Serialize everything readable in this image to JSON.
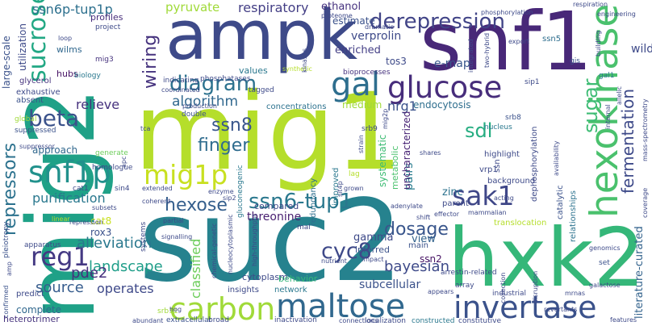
{
  "words": [
    {
      "text": "mig1",
      "color": "#b5de2b"
    },
    {
      "text": "mig2",
      "color": "#1fa187"
    },
    {
      "text": "suc2",
      "color": "#26828e"
    },
    {
      "text": "snf1",
      "color": "#482878"
    },
    {
      "text": "ampk",
      "color": "#3e4a89"
    },
    {
      "text": "hxk2",
      "color": "#35b779"
    },
    {
      "text": "hexokinase",
      "color": "#4ac16d"
    },
    {
      "text": "invertase",
      "color": "#3b528b"
    },
    {
      "text": "maltose",
      "color": "#31688e"
    },
    {
      "text": "glucose",
      "color": "#472d7b"
    },
    {
      "text": "carbon",
      "color": "#a0da39"
    },
    {
      "text": "mig1p",
      "color": "#c8e020"
    },
    {
      "text": "sak1",
      "color": "#3f4788"
    },
    {
      "text": "snf1p",
      "color": "#21918c"
    },
    {
      "text": "reg1",
      "color": "#443983"
    },
    {
      "text": "gal",
      "color": "#2e6e8e"
    },
    {
      "text": "diagram",
      "color": "#2c728e"
    },
    {
      "text": "hexose",
      "color": "#355f8d"
    },
    {
      "text": "ssn6-tup1",
      "color": "#2a788e"
    },
    {
      "text": "sucrose",
      "color": "#22a884"
    },
    {
      "text": "beta",
      "color": "#3b528b"
    },
    {
      "text": "cyc8",
      "color": "#3e4989"
    },
    {
      "text": "derepression",
      "color": "#414487"
    },
    {
      "text": "fermentation",
      "color": "#3e4a89"
    },
    {
      "text": "ssn8",
      "color": "#39568c"
    },
    {
      "text": "sugar",
      "color": "#3dbc74"
    },
    {
      "text": "dosage",
      "color": "#39568c"
    },
    {
      "text": "wiring",
      "color": "#46337e"
    },
    {
      "text": "finger",
      "color": "#2f6c8e"
    },
    {
      "text": "sdl",
      "color": "#26ad81"
    },
    {
      "text": "repressors",
      "color": "#2c728e"
    },
    {
      "text": "alleviation",
      "color": "#2a788e"
    },
    {
      "text": "landscape",
      "color": "#1f9e89"
    },
    {
      "text": "respiratory",
      "color": "#433e85"
    },
    {
      "text": "pyruvate",
      "color": "#a0da39"
    },
    {
      "text": "pde2",
      "color": "#46307e"
    },
    {
      "text": "ssn6p-tup1p",
      "color": "#2d708e"
    },
    {
      "text": "operates",
      "color": "#3e4989"
    },
    {
      "text": "source",
      "color": "#365c8d"
    },
    {
      "text": "bayesian",
      "color": "#3e4a89"
    },
    {
      "text": "subcellular",
      "color": "#3b528b"
    },
    {
      "text": "threonine",
      "color": "#481f70"
    },
    {
      "text": "zinc",
      "color": "#2c728e"
    },
    {
      "text": "pairs",
      "color": "#287c8e"
    },
    {
      "text": "algorithm",
      "color": "#31688e"
    },
    {
      "text": "relieve",
      "color": "#46327e"
    },
    {
      "text": "purification",
      "color": "#2a788e"
    },
    {
      "text": "nrg1",
      "color": "#3b528b"
    },
    {
      "text": "classified",
      "color": "#6ccd5a"
    },
    {
      "text": "view",
      "color": "#33638d"
    },
    {
      "text": "gamma",
      "color": "#3e4a89"
    },
    {
      "text": "ssn2",
      "color": "#471365"
    },
    {
      "text": "complete",
      "color": "#31688e"
    },
    {
      "text": "literature-curated",
      "color": "#33638d"
    },
    {
      "text": "uncharacterized",
      "color": "#482475"
    },
    {
      "text": "verprolin",
      "color": "#3e4a89"
    },
    {
      "text": "enriched",
      "color": "#433e85"
    },
    {
      "text": "tos3",
      "color": "#3e4a89"
    },
    {
      "text": "e-map",
      "color": "#39568c"
    },
    {
      "text": "ethanol",
      "color": "#46327e"
    },
    {
      "text": "estimate",
      "color": "#3b528b"
    },
    {
      "text": "endocytosis",
      "color": "#2e6e8e"
    },
    {
      "text": "large-scale",
      "color": "#3b528b"
    },
    {
      "text": "utilization",
      "color": "#3e4a89"
    },
    {
      "text": "hubs",
      "color": "#471365"
    },
    {
      "text": "wilms",
      "color": "#31688e"
    },
    {
      "text": "approach",
      "color": "#31688e"
    },
    {
      "text": "systematic",
      "color": "#3dbc74"
    },
    {
      "text": "metabolic",
      "color": "#4ac16d"
    },
    {
      "text": "cat8",
      "color": "#c8e020"
    },
    {
      "text": "rox3",
      "color": "#3b528b"
    },
    {
      "text": "cytoplasm",
      "color": "#3e4a89"
    },
    {
      "text": "profiles",
      "color": "#472d7b"
    },
    {
      "text": "medium",
      "color": "#a0da39"
    },
    {
      "text": "values",
      "color": "#2a788e"
    },
    {
      "text": "compared",
      "color": "#3e4a89"
    },
    {
      "text": "concentrations",
      "color": "#2c728e"
    },
    {
      "text": "glycerol",
      "color": "#46337e"
    },
    {
      "text": "exhaustive",
      "color": "#3e4a89"
    },
    {
      "text": "absent",
      "color": "#3b528b"
    },
    {
      "text": "redundancy",
      "color": "#2e6e8e"
    },
    {
      "text": "improved",
      "color": "#2a788e"
    },
    {
      "text": "srb11",
      "color": "#a0da39"
    },
    {
      "text": "insights",
      "color": "#3e4a89"
    },
    {
      "text": "network",
      "color": "#2a788e"
    },
    {
      "text": "behavior",
      "color": "#35b779"
    },
    {
      "text": "inferred",
      "color": "#3b528b"
    },
    {
      "text": "main",
      "color": "#3b528b"
    },
    {
      "text": "translocation",
      "color": "#b5de2b"
    },
    {
      "text": "catalytic",
      "color": "#3b528b"
    },
    {
      "text": "dephosphorylation",
      "color": "#3e4a89"
    },
    {
      "text": "relationships",
      "color": "#2c728e"
    },
    {
      "text": "background",
      "color": "#3e4a89"
    },
    {
      "text": "parent",
      "color": "#3e4a89"
    },
    {
      "text": "highlight",
      "color": "#3e4a89"
    },
    {
      "text": "vrp1",
      "color": "#3e4a89"
    },
    {
      "text": "ssn5",
      "color": "#2e6e8e"
    },
    {
      "text": "gal1",
      "color": "#2a788e"
    },
    {
      "text": "gis",
      "color": "#3b528b"
    },
    {
      "text": "sip1",
      "color": "#3e4a89"
    },
    {
      "text": "tagged",
      "color": "#3e4a89"
    },
    {
      "text": "bioprocesses",
      "color": "#46327e"
    },
    {
      "text": "srb8",
      "color": "#3b528b"
    },
    {
      "text": "srb9",
      "color": "#3e4a89"
    },
    {
      "text": "nucleus",
      "color": "#2a788e"
    },
    {
      "text": "mig3",
      "color": "#46337e"
    },
    {
      "text": "double",
      "color": "#3b528b"
    },
    {
      "text": "generate",
      "color": "#6ccd5a"
    },
    {
      "text": "homologue",
      "color": "#3e4a89"
    },
    {
      "text": "phosphatases",
      "color": "#3e4a89"
    },
    {
      "text": "indicating",
      "color": "#3e4a89"
    },
    {
      "text": "global",
      "color": "#a0da39"
    },
    {
      "text": "suppressed",
      "color": "#3b528b"
    },
    {
      "text": "project",
      "color": "#3e4a89"
    },
    {
      "text": "biology",
      "color": "#2a788e"
    },
    {
      "text": "pleiotropy",
      "color": "#3b528b"
    },
    {
      "text": "apparatus",
      "color": "#3e4a89"
    },
    {
      "text": "confirmed",
      "color": "#3b528b"
    },
    {
      "text": "predict",
      "color": "#3e4a89"
    },
    {
      "text": "heterotrimer",
      "color": "#46337e"
    },
    {
      "text": "subsets",
      "color": "#3e4a89"
    },
    {
      "text": "repression",
      "color": "#3e4a89"
    },
    {
      "text": "linear",
      "color": "#b5de2b"
    },
    {
      "text": "signalling",
      "color": "#3e4a89"
    },
    {
      "text": "hog",
      "color": "#3e4a89"
    },
    {
      "text": "extended",
      "color": "#3e4a89"
    },
    {
      "text": "extracellular",
      "color": "#3b528b"
    },
    {
      "text": "broad",
      "color": "#3e4a89"
    },
    {
      "text": "inactivation",
      "color": "#3e4a89"
    },
    {
      "text": "localization",
      "color": "#3e4a89"
    },
    {
      "text": "constructed",
      "color": "#2a788e"
    },
    {
      "text": "constitutive",
      "color": "#3e4a89"
    },
    {
      "text": "industrial",
      "color": "#3e4a89"
    },
    {
      "text": "array",
      "color": "#3e4a89"
    },
    {
      "text": "arrestin-related",
      "color": "#3e4a89"
    },
    {
      "text": "appears",
      "color": "#3e4a89"
    },
    {
      "text": "genomics",
      "color": "#3e4a89"
    },
    {
      "text": "galactose",
      "color": "#3e4a89"
    },
    {
      "text": "set",
      "color": "#3b528b"
    },
    {
      "text": "mrnas",
      "color": "#3e4a89"
    },
    {
      "text": "mammalian",
      "color": "#3e4a89"
    },
    {
      "text": "adenylate",
      "color": "#3e4a89"
    },
    {
      "text": "effector",
      "color": "#3e4a89"
    },
    {
      "text": "shift",
      "color": "#3e4a89"
    },
    {
      "text": "enzyme",
      "color": "#3e4a89"
    },
    {
      "text": "sit4p",
      "color": "#3e4a89"
    },
    {
      "text": "grown",
      "color": "#3e4a89"
    },
    {
      "text": "lag",
      "color": "#b5de2b"
    },
    {
      "text": "mal",
      "color": "#3e4a89"
    },
    {
      "text": "impact",
      "color": "#3e4a89"
    },
    {
      "text": "nutrient",
      "color": "#3e4a89"
    },
    {
      "text": "gluconeogenic",
      "color": "#2a788e"
    },
    {
      "text": "high-throughput",
      "color": "#3e4a89"
    },
    {
      "text": "nucleocytoplasmic",
      "color": "#3e4a89"
    },
    {
      "text": "chemical-genetic",
      "color": "#3e4a89"
    },
    {
      "text": "partial",
      "color": "#3e4a89"
    },
    {
      "text": "systems",
      "color": "#3e4a89"
    },
    {
      "text": "coherent",
      "color": "#3e4a89"
    },
    {
      "text": "sin4",
      "color": "#3e4a89"
    },
    {
      "text": "cat1",
      "color": "#3e4a89"
    },
    {
      "text": "tca",
      "color": "#3e4a89"
    },
    {
      "text": "coordinated",
      "color": "#3e4a89"
    },
    {
      "text": "production",
      "color": "#3e4a89"
    },
    {
      "text": "synthetic",
      "color": "#b5de2b"
    },
    {
      "text": "proteome",
      "color": "#3e4a89"
    },
    {
      "text": "dramatic",
      "color": "#3e4a89"
    },
    {
      "text": "integrated",
      "color": "#3e4a89"
    },
    {
      "text": "two-hybrid",
      "color": "#3e4a89"
    },
    {
      "text": "phosphorylation",
      "color": "#3e4a89"
    },
    {
      "text": "export",
      "color": "#3e4a89"
    },
    {
      "text": "respiration",
      "color": "#3e4a89"
    },
    {
      "text": "engineering",
      "color": "#3e4a89"
    },
    {
      "text": "building",
      "color": "#3e4a89"
    },
    {
      "text": "internal",
      "color": "#3e4a89"
    },
    {
      "text": "allelic",
      "color": "#3e4a89"
    },
    {
      "text": "mass-spectrometry",
      "color": "#3e4a89"
    },
    {
      "text": "coverage",
      "color": "#3e4a89"
    },
    {
      "text": "features",
      "color": "#3e4a89"
    },
    {
      "text": "revertants",
      "color": "#3e4a89"
    },
    {
      "text": "disruption",
      "color": "#3e4a89"
    },
    {
      "text": "collection",
      "color": "#3e4a89"
    },
    {
      "text": "connections",
      "color": "#3e4a89"
    },
    {
      "text": "abundant",
      "color": "#3e4a89"
    },
    {
      "text": "acting",
      "color": "#3e4a89"
    },
    {
      "text": "availability",
      "color": "#3e4a89"
    },
    {
      "text": "wild",
      "color": "#3e4a89"
    },
    {
      "text": "kinases",
      "color": "#3e4a89"
    },
    {
      "text": "loop",
      "color": "#3e4a89"
    },
    {
      "text": "apc",
      "color": "#3e4a89"
    },
    {
      "text": "amp",
      "color": "#3e4a89"
    },
    {
      "text": "sip2",
      "color": "#3e4a89"
    },
    {
      "text": "mig2p",
      "color": "#3e4a89"
    },
    {
      "text": "shares",
      "color": "#3e4a89"
    },
    {
      "text": "suppressor",
      "color": "#3e4a89"
    },
    {
      "text": "strain",
      "color": "#3e4a89"
    },
    {
      "text": "ssn",
      "color": "#3e4a89"
    }
  ]
}
